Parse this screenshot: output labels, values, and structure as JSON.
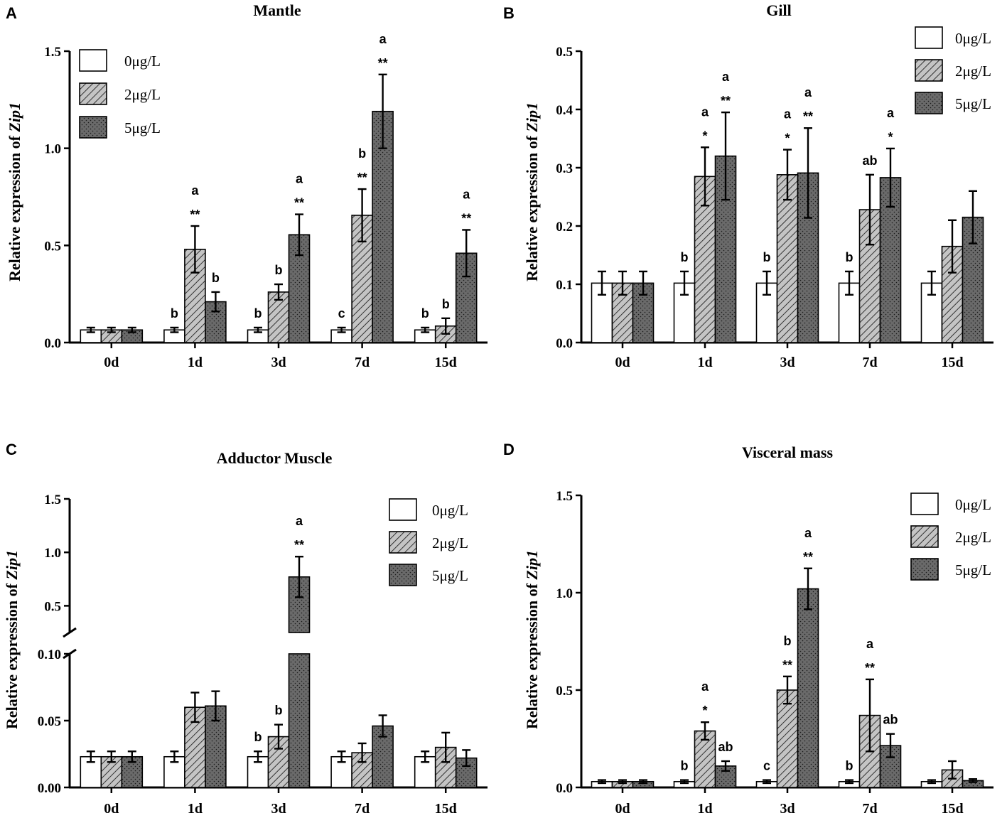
{
  "figure": {
    "groups": [
      "0μg/L",
      "2μg/L",
      "5μg/L"
    ],
    "colors": {
      "g0": "#ffffff",
      "g2": "#b8b8b8",
      "g5": "#6a6a6a",
      "stroke": "#000000"
    }
  },
  "chart_data": [
    {
      "panel": "A",
      "type": "bar",
      "title": "Mantle",
      "ylabel_prefix": "Relative expression of",
      "ylabel_gene": "Zip1",
      "categories": [
        "0d",
        "1d",
        "3d",
        "7d",
        "15d"
      ],
      "ylim": [
        0,
        1.5
      ],
      "yticks": [
        "0.0",
        "0.5",
        "1.0",
        "1.5"
      ],
      "legend": [
        "0μg/L",
        "2μg/L",
        "5μg/L"
      ],
      "series": [
        {
          "name": "0μg/L",
          "values": [
            0.065,
            0.065,
            0.065,
            0.065,
            0.065
          ],
          "errors": [
            0.012,
            0.012,
            0.012,
            0.012,
            0.012
          ],
          "annotations": [
            [],
            [
              "b"
            ],
            [
              "b"
            ],
            [
              "c"
            ],
            [
              "b"
            ]
          ]
        },
        {
          "name": "2μg/L",
          "values": [
            0.065,
            0.48,
            0.26,
            0.655,
            0.085
          ],
          "errors": [
            0.012,
            0.12,
            0.04,
            0.135,
            0.04
          ],
          "annotations": [
            [],
            [
              "a",
              "**"
            ],
            [
              "b"
            ],
            [
              "b",
              "**"
            ],
            [
              "b"
            ]
          ]
        },
        {
          "name": "5μg/L",
          "values": [
            0.065,
            0.21,
            0.555,
            1.19,
            0.46
          ],
          "errors": [
            0.012,
            0.05,
            0.105,
            0.19,
            0.12
          ],
          "annotations": [
            [],
            [
              "b"
            ],
            [
              "a",
              "**"
            ],
            [
              "a",
              "**"
            ],
            [
              "a",
              "**"
            ]
          ]
        }
      ]
    },
    {
      "panel": "B",
      "type": "bar",
      "title": "Gill",
      "ylabel_prefix": "Relative expression of",
      "ylabel_gene": "Zip1",
      "categories": [
        "0d",
        "1d",
        "3d",
        "7d",
        "15d"
      ],
      "ylim": [
        0,
        0.5
      ],
      "yticks": [
        "0.0",
        "0.1",
        "0.2",
        "0.3",
        "0.4",
        "0.5"
      ],
      "legend": [
        "0μg/L",
        "2μg/L",
        "5μg/L"
      ],
      "series": [
        {
          "name": "0μg/L",
          "values": [
            0.102,
            0.102,
            0.102,
            0.102,
            0.102
          ],
          "errors": [
            0.02,
            0.02,
            0.02,
            0.02,
            0.02
          ],
          "annotations": [
            [],
            [
              "b"
            ],
            [
              "b"
            ],
            [
              "b"
            ],
            []
          ]
        },
        {
          "name": "2μg/L",
          "values": [
            0.102,
            0.285,
            0.288,
            0.228,
            0.165
          ],
          "errors": [
            0.02,
            0.05,
            0.043,
            0.06,
            0.045
          ],
          "annotations": [
            [],
            [
              "a",
              "*"
            ],
            [
              "a",
              "*"
            ],
            [
              "ab"
            ],
            []
          ]
        },
        {
          "name": "5μg/L",
          "values": [
            0.102,
            0.32,
            0.291,
            0.283,
            0.215
          ],
          "errors": [
            0.02,
            0.075,
            0.077,
            0.05,
            0.045
          ],
          "annotations": [
            [],
            [
              "a",
              "**"
            ],
            [
              "a",
              "**"
            ],
            [
              "a",
              "*"
            ],
            []
          ]
        }
      ]
    },
    {
      "panel": "C",
      "type": "bar",
      "title": "Adductor Muscle",
      "ylabel_prefix": "Relative expression of",
      "ylabel_gene": "Zip1",
      "categories": [
        "0d",
        "1d",
        "3d",
        "7d",
        "15d"
      ],
      "ylim_lower": [
        0,
        0.1
      ],
      "ylim_upper": [
        0.25,
        1.5
      ],
      "yticks_lower": [
        "0.00",
        "0.05",
        "0.10"
      ],
      "yticks_upper": [
        "0.5",
        "1.0",
        "1.5"
      ],
      "legend": [
        "0μg/L",
        "2μg/L",
        "5μg/L"
      ],
      "series": [
        {
          "name": "0μg/L",
          "values": [
            0.023,
            0.023,
            0.023,
            0.023,
            0.023
          ],
          "errors": [
            0.004,
            0.004,
            0.004,
            0.004,
            0.004
          ],
          "annotations": [
            [],
            [],
            [
              "b"
            ],
            [],
            []
          ]
        },
        {
          "name": "2μg/L",
          "values": [
            0.023,
            0.06,
            0.038,
            0.026,
            0.03
          ],
          "errors": [
            0.004,
            0.011,
            0.009,
            0.007,
            0.011
          ],
          "annotations": [
            [],
            [],
            [
              "b"
            ],
            [],
            []
          ]
        },
        {
          "name": "5μg/L",
          "values": [
            0.023,
            0.061,
            0.77,
            0.046,
            0.022
          ],
          "errors": [
            0.004,
            0.011,
            0.19,
            0.008,
            0.006
          ],
          "annotations": [
            [],
            [],
            [
              "a",
              "**"
            ],
            [],
            []
          ]
        }
      ]
    },
    {
      "panel": "D",
      "type": "bar",
      "title": "Visceral  mass",
      "ylabel_prefix": "Relative expression of",
      "ylabel_gene": "Zip1",
      "categories": [
        "0d",
        "1d",
        "3d",
        "7d",
        "15d"
      ],
      "ylim": [
        0,
        1.5
      ],
      "yticks": [
        "0.0",
        "0.5",
        "1.0",
        "1.5"
      ],
      "legend": [
        "0μg/L",
        "2μg/L",
        "5μg/L"
      ],
      "series": [
        {
          "name": "0μg/L",
          "values": [
            0.03,
            0.03,
            0.03,
            0.03,
            0.03
          ],
          "errors": [
            0.008,
            0.008,
            0.008,
            0.008,
            0.008
          ],
          "annotations": [
            [],
            [
              "b"
            ],
            [
              "c"
            ],
            [
              "b"
            ],
            []
          ]
        },
        {
          "name": "2μg/L",
          "values": [
            0.03,
            0.29,
            0.5,
            0.37,
            0.09
          ],
          "errors": [
            0.008,
            0.045,
            0.07,
            0.185,
            0.045
          ],
          "annotations": [
            [],
            [
              "a",
              "*"
            ],
            [
              "b",
              "**"
            ],
            [
              "a",
              "**"
            ],
            []
          ]
        },
        {
          "name": "5μg/L",
          "values": [
            0.03,
            0.11,
            1.02,
            0.215,
            0.035
          ],
          "errors": [
            0.008,
            0.025,
            0.105,
            0.06,
            0.008
          ],
          "annotations": [
            [],
            [
              "ab"
            ],
            [
              "a",
              "**"
            ],
            [
              "ab"
            ],
            []
          ]
        }
      ]
    }
  ]
}
